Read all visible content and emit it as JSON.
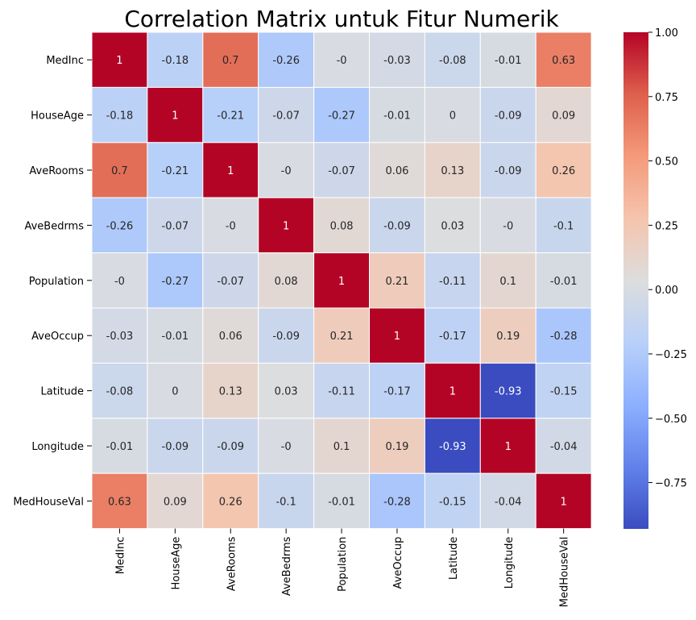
{
  "chart_data": {
    "type": "heatmap",
    "title": "Correlation Matrix untuk Fitur Numerik",
    "colormap": "coolwarm",
    "vmin": -0.93,
    "vmax": 1.0,
    "labels": [
      "MedInc",
      "HouseAge",
      "AveRooms",
      "AveBedrms",
      "Population",
      "AveOccup",
      "Latitude",
      "Longitude",
      "MedHouseVal"
    ],
    "cell_labels": [
      [
        "1",
        "-0.18",
        "0.7",
        "-0.26",
        "-0",
        "-0.03",
        "-0.08",
        "-0.01",
        "0.63"
      ],
      [
        "-0.18",
        "1",
        "-0.21",
        "-0.07",
        "-0.27",
        "-0.01",
        "0",
        "-0.09",
        "0.09"
      ],
      [
        "0.7",
        "-0.21",
        "1",
        "-0",
        "-0.07",
        "0.06",
        "0.13",
        "-0.09",
        "0.26"
      ],
      [
        "-0.26",
        "-0.07",
        "-0",
        "1",
        "0.08",
        "-0.09",
        "0.03",
        "-0",
        "-0.1"
      ],
      [
        "-0",
        "-0.27",
        "-0.07",
        "0.08",
        "1",
        "0.21",
        "-0.11",
        "0.1",
        "-0.01"
      ],
      [
        "-0.03",
        "-0.01",
        "0.06",
        "-0.09",
        "0.21",
        "1",
        "-0.17",
        "0.19",
        "-0.28"
      ],
      [
        "-0.08",
        "0",
        "0.13",
        "0.03",
        "-0.11",
        "-0.17",
        "1",
        "-0.93",
        "-0.15"
      ],
      [
        "-0.01",
        "-0.09",
        "-0.09",
        "-0",
        "0.1",
        "0.19",
        "-0.93",
        "1",
        "-0.04"
      ],
      [
        "0.63",
        "0.09",
        "0.26",
        "-0.1",
        "-0.01",
        "-0.28",
        "-0.15",
        "-0.04",
        "1"
      ]
    ],
    "colorbar_ticks": [
      "1.00",
      "0.75",
      "0.50",
      "0.25",
      "0.00",
      "−0.25",
      "−0.50",
      "−0.75"
    ],
    "colorbar_tick_values": [
      1.0,
      0.75,
      0.5,
      0.25,
      0.0,
      -0.25,
      -0.5,
      -0.75
    ],
    "grid": true,
    "legend": "colorbar-right"
  }
}
